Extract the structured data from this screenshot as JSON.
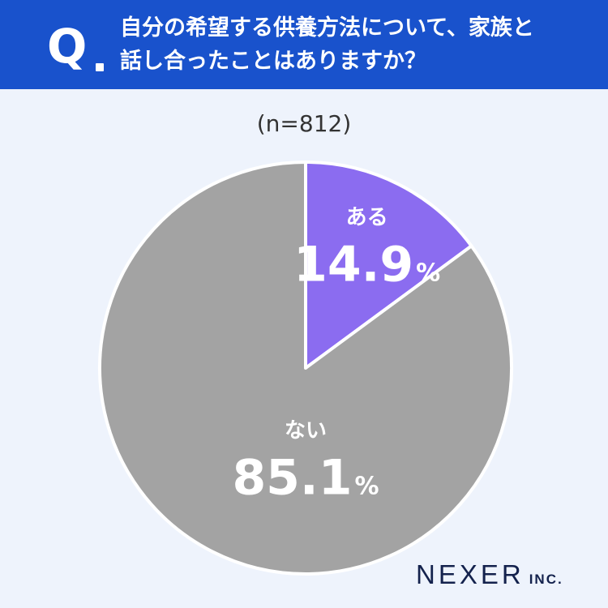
{
  "header": {
    "q_mark": "Q",
    "question_line1": "自分の希望する供養方法について、家族と",
    "question_line2": "話し合ったことはありますか？"
  },
  "sample": "(n=812)",
  "chart_data": {
    "type": "pie",
    "slices": [
      {
        "label": "ある",
        "value": 14.9,
        "value_text": "14.9",
        "unit": "%",
        "color": "#8b6cf0"
      },
      {
        "label": "ない",
        "value": 85.1,
        "value_text": "85.1",
        "unit": "%",
        "color": "#a3a3a3"
      }
    ],
    "start_angle": "12 o'clock",
    "direction": "clockwise",
    "slice_border_color": "#ffffff"
  },
  "logo": {
    "main": "NEXER",
    "sub": "INC."
  }
}
